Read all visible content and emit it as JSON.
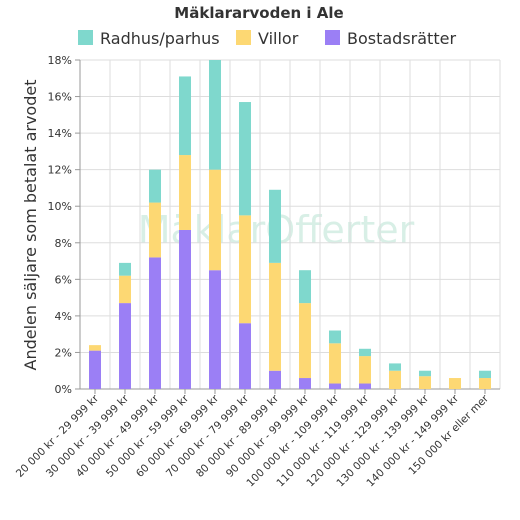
{
  "chart_data": {
    "type": "bar",
    "stacked": true,
    "title": "Mäklararvoden i Ale",
    "ylabel": "Andelen säljare som betalat arvodet",
    "xlabel": "",
    "ylim": [
      0,
      18
    ],
    "y_ticks": [
      "0%",
      "2%",
      "4%",
      "6%",
      "8%",
      "10%",
      "12%",
      "14%",
      "16%",
      "18%"
    ],
    "grid": true,
    "legend_position": "top",
    "watermark": "MäklarOfferter",
    "categories": [
      "20 000 kr - 29 999 kr",
      "30 000 kr - 39 999 kr",
      "40 000 kr - 49 999 kr",
      "50 000 kr - 59 999 kr",
      "60 000 kr - 69 999 kr",
      "70 000 kr - 79 999 kr",
      "80 000 kr - 89 999 kr",
      "90 000 kr - 99 999 kr",
      "100 000 kr - 109 999 kr",
      "110 000 kr - 119 999 kr",
      "120 000 kr - 129 999 kr",
      "130 000 kr - 139 999 kr",
      "140 000 kr - 149 999 kr",
      "150 000 kr eller mer"
    ],
    "series": [
      {
        "name": "Bostadsrätter",
        "color": "#9b7ff5",
        "values": [
          2.1,
          4.7,
          7.2,
          8.7,
          6.5,
          3.6,
          1.0,
          0.6,
          0.3,
          0.3,
          0,
          0,
          0,
          0
        ]
      },
      {
        "name": "Villor",
        "color": "#fdd873",
        "values": [
          0.3,
          1.5,
          3.0,
          4.1,
          5.5,
          5.9,
          5.9,
          4.1,
          2.2,
          1.5,
          1.0,
          0.7,
          0.6,
          0.6
        ]
      },
      {
        "name": "Radhus/parhus",
        "color": "#7fd8cd",
        "values": [
          0,
          0.7,
          1.8,
          4.3,
          6.0,
          6.2,
          4.0,
          1.8,
          0.7,
          0.4,
          0.4,
          0.3,
          0,
          0.4
        ]
      }
    ],
    "legend_order": [
      "Radhus/parhus",
      "Villor",
      "Bostadsrätter"
    ]
  }
}
